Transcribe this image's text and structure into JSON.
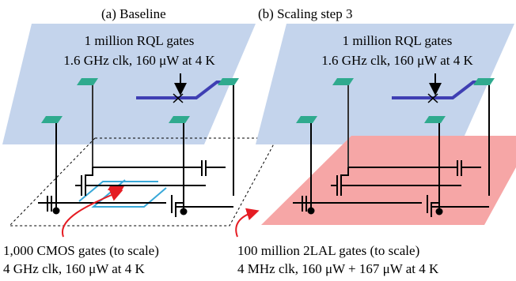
{
  "panel_a": {
    "title": "(a)    Baseline",
    "plane_line1": "1 million RQL gates",
    "plane_line2": "1.6 GHz clk, 160 μW at 4 K",
    "caption_line1": "1,000 CMOS gates (to scale)",
    "caption_line2": "4 GHz clk, 160 μW at 4 K"
  },
  "panel_b": {
    "title": "(b) Scaling step 3",
    "plane_line1": "1 million RQL gates",
    "plane_line2": "1.6 GHz clk, 160 μW at 4 K",
    "caption_line1": "100 million 2LAL gates (to scale)",
    "caption_line2": "4 MHz clk, 160 μW + 167 μW at 4 K"
  },
  "colors": {
    "rql_plane": "#c4d4ec",
    "via_pad": "#2faa8e",
    "bus": "#3f3fb3",
    "wire_cyan": "#38a8d8",
    "cmos_block": "#e51c23",
    "lal_plane": "#f6a6a6",
    "arrow_red": "#e51c23"
  }
}
